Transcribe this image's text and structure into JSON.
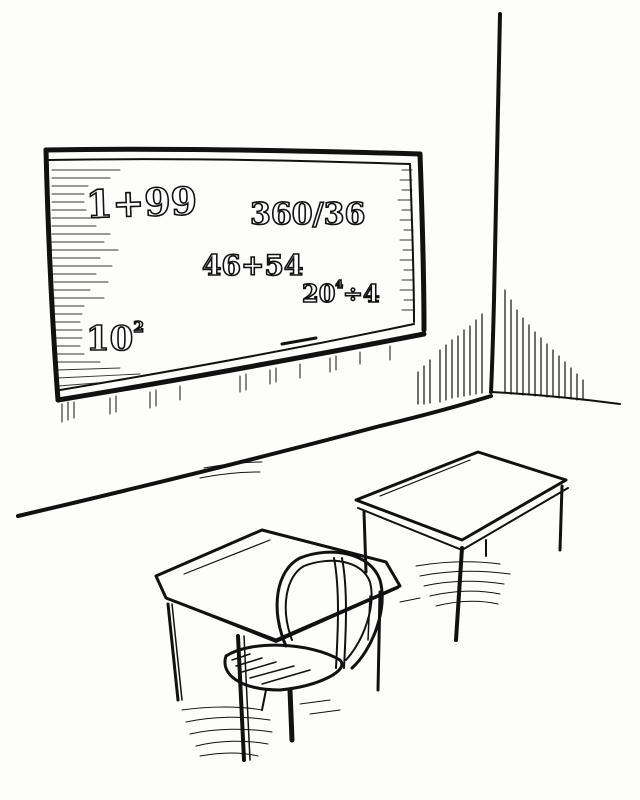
{
  "scene": {
    "style": "black ink sketch",
    "ink_color": "#111111",
    "paper_color": "#fdfdfb",
    "objects": [
      "chalkboard",
      "wall-corner",
      "desk-front",
      "desk-back",
      "chair"
    ]
  },
  "chalkboard": {
    "equations": [
      {
        "text": "1+99",
        "sup": ""
      },
      {
        "text": "360/36",
        "sup": ""
      },
      {
        "text": "46+54",
        "sup": ""
      },
      {
        "text": "20",
        "sup": "4",
        "rest": "÷4"
      },
      {
        "text": "10",
        "sup": "2"
      }
    ]
  }
}
